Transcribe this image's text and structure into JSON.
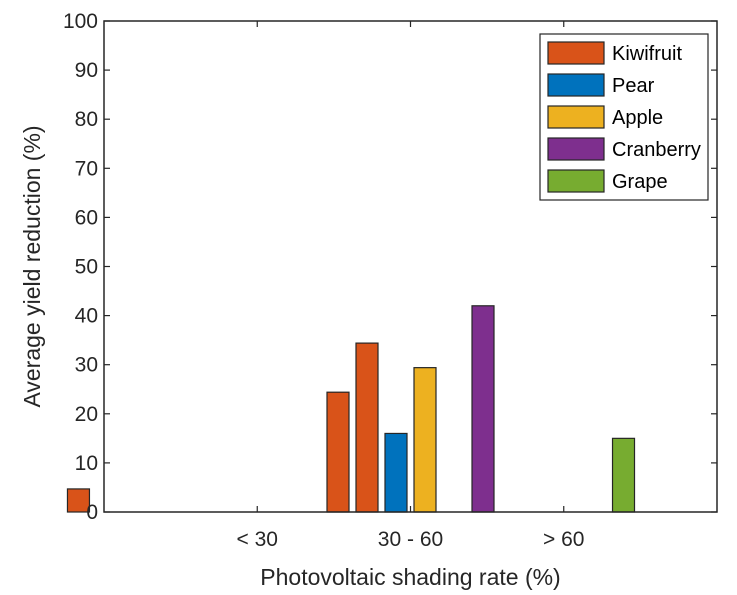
{
  "chart_data": {
    "type": "bar",
    "categories": [
      "< 30",
      "30 - 60",
      "> 60"
    ],
    "xlabel": "Photovoltaic shading rate (%)",
    "ylabel": "Average yield reduction (%)",
    "ylim": [
      0,
      100
    ],
    "yticks": [
      0,
      10,
      20,
      30,
      40,
      50,
      60,
      70,
      80,
      90,
      100
    ],
    "grid": false,
    "legend_position": "top-right",
    "series": [
      {
        "name": "Kiwifruit",
        "color": "#D95319",
        "bars": [
          {
            "category": "< 30",
            "value": 4.7
          },
          {
            "category": "30 - 60",
            "value": 24.4
          },
          {
            "category": "30 - 60",
            "value": 34.4
          }
        ]
      },
      {
        "name": "Pear",
        "color": "#0072BD",
        "bars": [
          {
            "category": "30 - 60",
            "value": 16
          }
        ]
      },
      {
        "name": "Apple",
        "color": "#EDB120",
        "bars": [
          {
            "category": "30 - 60",
            "value": 29.4
          }
        ]
      },
      {
        "name": "Cranberry",
        "color": "#7E2F8E",
        "bars": [
          {
            "category": "30 - 60",
            "value": 42
          }
        ]
      },
      {
        "name": "Grape",
        "color": "#77AC30",
        "bars": [
          {
            "category": "> 60",
            "value": 15
          }
        ]
      }
    ]
  }
}
